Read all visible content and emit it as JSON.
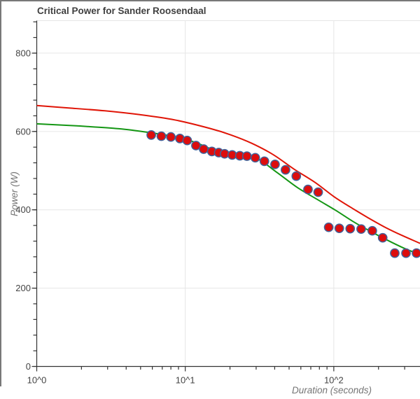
{
  "title": "Critical Power for Sander Roosendaal",
  "colors": {
    "red_curve": "#e01507",
    "green_curve": "#149614",
    "point_fill": "#dc0d0d",
    "point_stroke": "#40639a",
    "grid": "#e6e6e6",
    "axis": "#333333",
    "tick_label": "#444444",
    "axis_title": "#757575",
    "title": "#404040",
    "border": "#787878"
  },
  "chart_data": {
    "type": "scatter",
    "title": "Critical Power for Sander Roosendaal",
    "xlabel": "Duration (seconds)",
    "ylabel": "Power (W)",
    "xscale": "log",
    "xlim": [
      1,
      380.5
    ],
    "ylim": [
      0,
      883
    ],
    "x_ticks": [
      {
        "value": 1,
        "label": "10^0"
      },
      {
        "value": 10,
        "label": "10^1"
      },
      {
        "value": 100,
        "label": "10^2"
      }
    ],
    "x_minor_ticks": [
      2,
      3,
      4,
      5,
      6,
      7,
      8,
      9,
      20,
      30,
      40,
      50,
      60,
      70,
      80,
      90,
      200,
      300
    ],
    "y_ticks": [
      {
        "value": 0,
        "label": "0"
      },
      {
        "value": 200,
        "label": "200"
      },
      {
        "value": 400,
        "label": "400"
      },
      {
        "value": 600,
        "label": "600"
      },
      {
        "value": 800,
        "label": "800"
      }
    ],
    "y_minor_step": 40,
    "y_minor_max": 880,
    "grid_x": [
      10,
      100
    ],
    "grid_y": [
      200,
      400,
      600,
      800,
      883
    ],
    "series": [
      {
        "name": "model-curve-green",
        "type": "line",
        "color_key": "green_curve",
        "points": [
          [
            1,
            619.6
          ],
          [
            1.86,
            614.3
          ],
          [
            3.57,
            607.1
          ],
          [
            5.94,
            596.4
          ],
          [
            8.49,
            586.6
          ],
          [
            11.8,
            571.4
          ],
          [
            16.3,
            550.0
          ],
          [
            22.6,
            540.2
          ],
          [
            30.3,
            531.3
          ],
          [
            41.1,
            496.4
          ],
          [
            56.8,
            457.1
          ],
          [
            78.5,
            425.0
          ],
          [
            103.4,
            398.2
          ],
          [
            135.4,
            369.6
          ],
          [
            177.4,
            344.6
          ],
          [
            232.4,
            321.4
          ],
          [
            297.9,
            301.8
          ],
          [
            381,
            285.7
          ]
        ]
      },
      {
        "name": "model-curve-red",
        "type": "line",
        "color_key": "red_curve",
        "points": [
          [
            1,
            666.1
          ],
          [
            1.67,
            659.8
          ],
          [
            2.87,
            652.7
          ],
          [
            4.94,
            642.9
          ],
          [
            8.49,
            629.5
          ],
          [
            14.6,
            608.0
          ],
          [
            20.3,
            591.1
          ],
          [
            28.1,
            569.6
          ],
          [
            39.0,
            541.1
          ],
          [
            54.1,
            503.6
          ],
          [
            75.0,
            469.6
          ],
          [
            100,
            433.9
          ],
          [
            128.9,
            407.1
          ],
          [
            169.0,
            380.4
          ],
          [
            221.6,
            355.4
          ],
          [
            290.6,
            333.9
          ],
          [
            381,
            314.3
          ]
        ]
      },
      {
        "name": "observed-power",
        "type": "scatter",
        "color_key": "point_fill",
        "stroke_key": "point_stroke",
        "points": [
          [
            5.9,
            591
          ],
          [
            6.9,
            588
          ],
          [
            8.0,
            586
          ],
          [
            9.2,
            582
          ],
          [
            10.3,
            577
          ],
          [
            11.8,
            564
          ],
          [
            13.3,
            555
          ],
          [
            15.1,
            549
          ],
          [
            16.8,
            546
          ],
          [
            18.4,
            543
          ],
          [
            20.7,
            540
          ],
          [
            23.3,
            538
          ],
          [
            26.0,
            537
          ],
          [
            29.6,
            533
          ],
          [
            34.1,
            524
          ],
          [
            40.2,
            516
          ],
          [
            47.3,
            502
          ],
          [
            55.9,
            486
          ],
          [
            67.0,
            452
          ],
          [
            78.5,
            445
          ],
          [
            92.4,
            355.4
          ],
          [
            108.9,
            352.7
          ],
          [
            128.9,
            351.8
          ],
          [
            152.8,
            350.9
          ],
          [
            181.6,
            346.4
          ],
          [
            213.4,
            328.6
          ],
          [
            257.3,
            289.3
          ],
          [
            306.3,
            289.3
          ],
          [
            360.5,
            289.3
          ]
        ]
      }
    ]
  }
}
